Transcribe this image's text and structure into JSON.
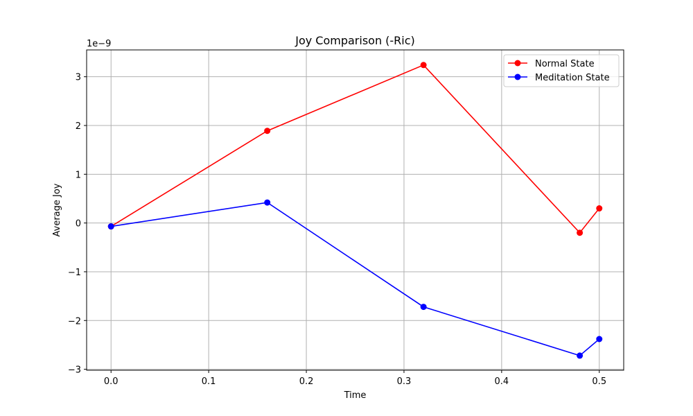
{
  "chart_data": {
    "type": "line",
    "title": "Joy Comparison (-Ric)",
    "xlabel": "Time",
    "ylabel": "Average Joy",
    "y_offset_text": "1e−9",
    "xlim": [
      -0.025,
      0.525
    ],
    "ylim": [
      -3.02,
      3.55
    ],
    "xticks": [
      0.0,
      0.1,
      0.2,
      0.3,
      0.4,
      0.5
    ],
    "xtick_labels": [
      "0.0",
      "0.1",
      "0.2",
      "0.3",
      "0.4",
      "0.5"
    ],
    "yticks": [
      -3,
      -2,
      -1,
      0,
      1,
      2,
      3
    ],
    "ytick_labels": [
      "−3",
      "−2",
      "−1",
      "0",
      "1",
      "2",
      "3"
    ],
    "grid": true,
    "legend_position": "top-right",
    "x": [
      0.0,
      0.16,
      0.32,
      0.48,
      0.5
    ],
    "series": [
      {
        "name": "Normal State",
        "color": "#ff0000",
        "values": [
          -0.07,
          1.89,
          3.24,
          -0.2,
          0.3
        ]
      },
      {
        "name": "Meditation State",
        "color": "#0000ff",
        "values": [
          -0.07,
          0.42,
          -1.72,
          -2.72,
          -2.38
        ]
      }
    ]
  }
}
